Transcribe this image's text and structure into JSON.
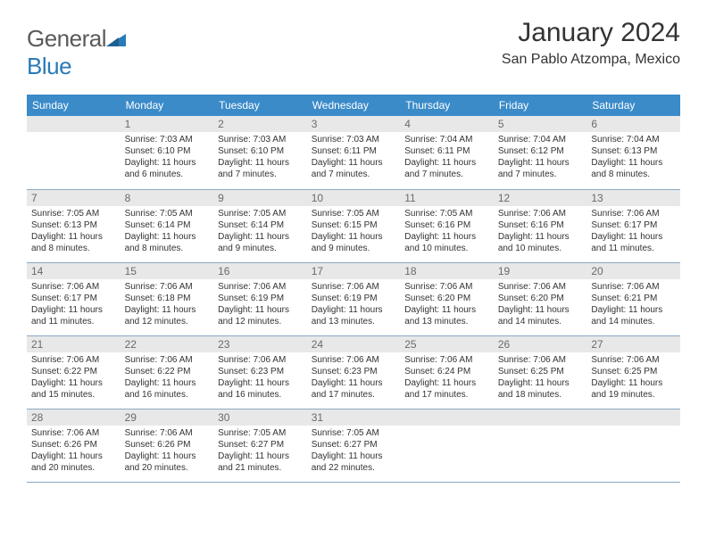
{
  "logo": {
    "word1": "General",
    "word2": "Blue"
  },
  "title": "January 2024",
  "location": "San Pablo Atzompa, Mexico",
  "colors": {
    "header_bg": "#3b8bc9",
    "header_text": "#ffffff",
    "daynum_bg": "#e8e8e8",
    "daynum_text": "#6a6a6a",
    "border": "#8aa8c0",
    "body_text": "#333333",
    "logo_gray": "#5a5a5a",
    "logo_blue": "#2a7ab8"
  },
  "week_labels": [
    "Sunday",
    "Monday",
    "Tuesday",
    "Wednesday",
    "Thursday",
    "Friday",
    "Saturday"
  ],
  "weeks": [
    [
      {
        "n": "",
        "lines": []
      },
      {
        "n": "1",
        "lines": [
          "Sunrise: 7:03 AM",
          "Sunset: 6:10 PM",
          "Daylight: 11 hours and 6 minutes."
        ]
      },
      {
        "n": "2",
        "lines": [
          "Sunrise: 7:03 AM",
          "Sunset: 6:10 PM",
          "Daylight: 11 hours and 7 minutes."
        ]
      },
      {
        "n": "3",
        "lines": [
          "Sunrise: 7:03 AM",
          "Sunset: 6:11 PM",
          "Daylight: 11 hours and 7 minutes."
        ]
      },
      {
        "n": "4",
        "lines": [
          "Sunrise: 7:04 AM",
          "Sunset: 6:11 PM",
          "Daylight: 11 hours and 7 minutes."
        ]
      },
      {
        "n": "5",
        "lines": [
          "Sunrise: 7:04 AM",
          "Sunset: 6:12 PM",
          "Daylight: 11 hours and 7 minutes."
        ]
      },
      {
        "n": "6",
        "lines": [
          "Sunrise: 7:04 AM",
          "Sunset: 6:13 PM",
          "Daylight: 11 hours and 8 minutes."
        ]
      }
    ],
    [
      {
        "n": "7",
        "lines": [
          "Sunrise: 7:05 AM",
          "Sunset: 6:13 PM",
          "Daylight: 11 hours and 8 minutes."
        ]
      },
      {
        "n": "8",
        "lines": [
          "Sunrise: 7:05 AM",
          "Sunset: 6:14 PM",
          "Daylight: 11 hours and 8 minutes."
        ]
      },
      {
        "n": "9",
        "lines": [
          "Sunrise: 7:05 AM",
          "Sunset: 6:14 PM",
          "Daylight: 11 hours and 9 minutes."
        ]
      },
      {
        "n": "10",
        "lines": [
          "Sunrise: 7:05 AM",
          "Sunset: 6:15 PM",
          "Daylight: 11 hours and 9 minutes."
        ]
      },
      {
        "n": "11",
        "lines": [
          "Sunrise: 7:05 AM",
          "Sunset: 6:16 PM",
          "Daylight: 11 hours and 10 minutes."
        ]
      },
      {
        "n": "12",
        "lines": [
          "Sunrise: 7:06 AM",
          "Sunset: 6:16 PM",
          "Daylight: 11 hours and 10 minutes."
        ]
      },
      {
        "n": "13",
        "lines": [
          "Sunrise: 7:06 AM",
          "Sunset: 6:17 PM",
          "Daylight: 11 hours and 11 minutes."
        ]
      }
    ],
    [
      {
        "n": "14",
        "lines": [
          "Sunrise: 7:06 AM",
          "Sunset: 6:17 PM",
          "Daylight: 11 hours and 11 minutes."
        ]
      },
      {
        "n": "15",
        "lines": [
          "Sunrise: 7:06 AM",
          "Sunset: 6:18 PM",
          "Daylight: 11 hours and 12 minutes."
        ]
      },
      {
        "n": "16",
        "lines": [
          "Sunrise: 7:06 AM",
          "Sunset: 6:19 PM",
          "Daylight: 11 hours and 12 minutes."
        ]
      },
      {
        "n": "17",
        "lines": [
          "Sunrise: 7:06 AM",
          "Sunset: 6:19 PM",
          "Daylight: 11 hours and 13 minutes."
        ]
      },
      {
        "n": "18",
        "lines": [
          "Sunrise: 7:06 AM",
          "Sunset: 6:20 PM",
          "Daylight: 11 hours and 13 minutes."
        ]
      },
      {
        "n": "19",
        "lines": [
          "Sunrise: 7:06 AM",
          "Sunset: 6:20 PM",
          "Daylight: 11 hours and 14 minutes."
        ]
      },
      {
        "n": "20",
        "lines": [
          "Sunrise: 7:06 AM",
          "Sunset: 6:21 PM",
          "Daylight: 11 hours and 14 minutes."
        ]
      }
    ],
    [
      {
        "n": "21",
        "lines": [
          "Sunrise: 7:06 AM",
          "Sunset: 6:22 PM",
          "Daylight: 11 hours and 15 minutes."
        ]
      },
      {
        "n": "22",
        "lines": [
          "Sunrise: 7:06 AM",
          "Sunset: 6:22 PM",
          "Daylight: 11 hours and 16 minutes."
        ]
      },
      {
        "n": "23",
        "lines": [
          "Sunrise: 7:06 AM",
          "Sunset: 6:23 PM",
          "Daylight: 11 hours and 16 minutes."
        ]
      },
      {
        "n": "24",
        "lines": [
          "Sunrise: 7:06 AM",
          "Sunset: 6:23 PM",
          "Daylight: 11 hours and 17 minutes."
        ]
      },
      {
        "n": "25",
        "lines": [
          "Sunrise: 7:06 AM",
          "Sunset: 6:24 PM",
          "Daylight: 11 hours and 17 minutes."
        ]
      },
      {
        "n": "26",
        "lines": [
          "Sunrise: 7:06 AM",
          "Sunset: 6:25 PM",
          "Daylight: 11 hours and 18 minutes."
        ]
      },
      {
        "n": "27",
        "lines": [
          "Sunrise: 7:06 AM",
          "Sunset: 6:25 PM",
          "Daylight: 11 hours and 19 minutes."
        ]
      }
    ],
    [
      {
        "n": "28",
        "lines": [
          "Sunrise: 7:06 AM",
          "Sunset: 6:26 PM",
          "Daylight: 11 hours and 20 minutes."
        ]
      },
      {
        "n": "29",
        "lines": [
          "Sunrise: 7:06 AM",
          "Sunset: 6:26 PM",
          "Daylight: 11 hours and 20 minutes."
        ]
      },
      {
        "n": "30",
        "lines": [
          "Sunrise: 7:05 AM",
          "Sunset: 6:27 PM",
          "Daylight: 11 hours and 21 minutes."
        ]
      },
      {
        "n": "31",
        "lines": [
          "Sunrise: 7:05 AM",
          "Sunset: 6:27 PM",
          "Daylight: 11 hours and 22 minutes."
        ]
      },
      {
        "n": "",
        "lines": []
      },
      {
        "n": "",
        "lines": []
      },
      {
        "n": "",
        "lines": []
      }
    ]
  ]
}
